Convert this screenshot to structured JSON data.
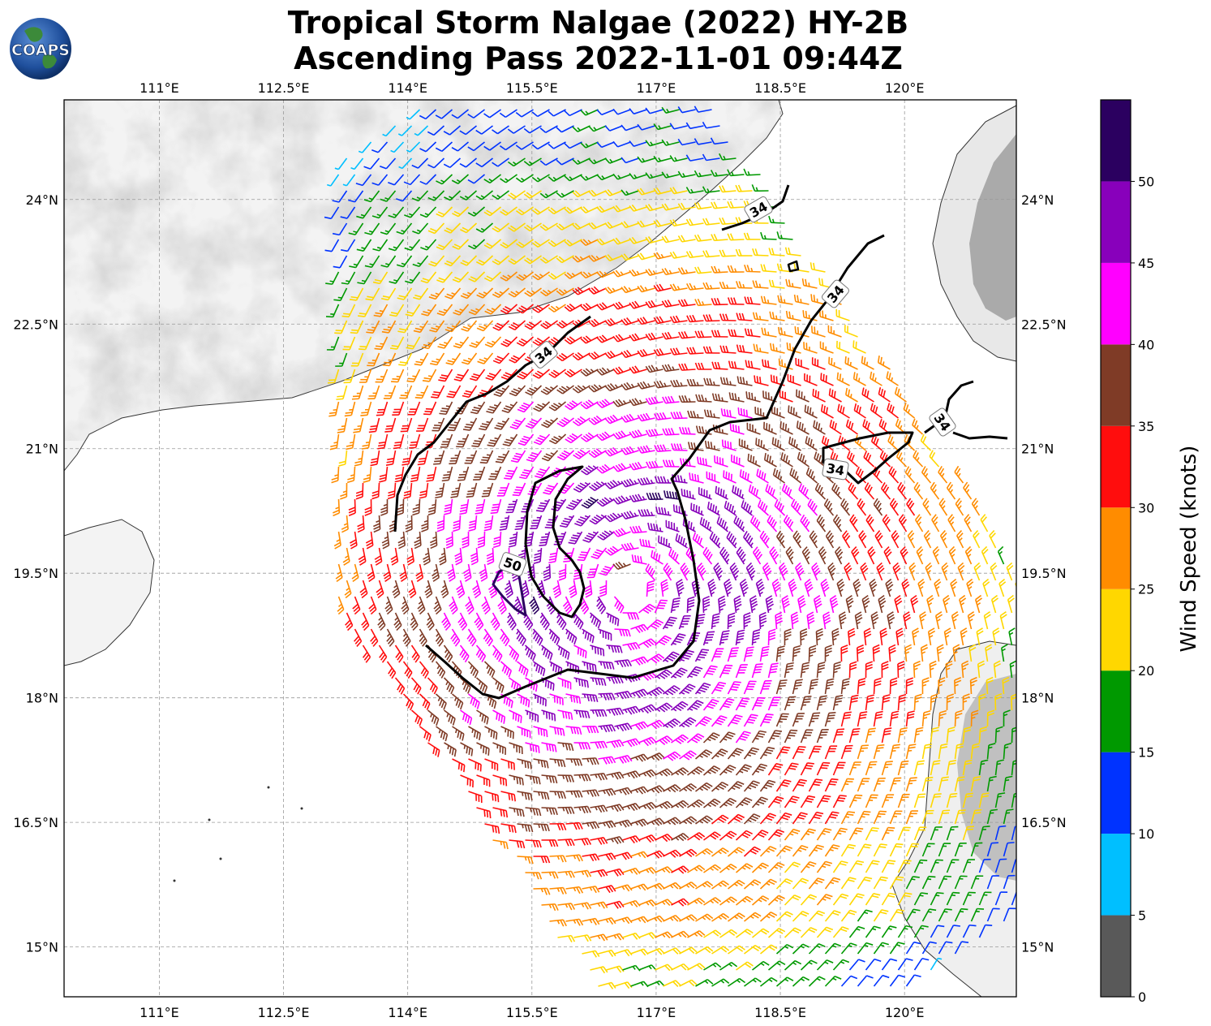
{
  "title": {
    "line1": "Tropical Storm Nalgae (2022) HY-2B",
    "line2": "Ascending Pass 2022-11-01 09:44Z"
  },
  "logo": {
    "text": "COAPS"
  },
  "map": {
    "lon_ticks": [
      "111°E",
      "112.5°E",
      "114°E",
      "115.5°E",
      "117°E",
      "118.5°E",
      "120°E"
    ],
    "lat_ticks": [
      "24°N",
      "22.5°N",
      "21°N",
      "19.5°N",
      "18°N",
      "16.5°N",
      "15°N"
    ],
    "lon_range": [
      109.85,
      121.35
    ],
    "lat_range": [
      14.4,
      25.2
    ],
    "contour_labels": [
      "34",
      "34",
      "34",
      "34",
      "34",
      "50"
    ],
    "storm_center": [
      116.7,
      19.3
    ]
  },
  "colorbar": {
    "label": "Wind Speed (knots)",
    "ticks": [
      "0",
      "5",
      "10",
      "15",
      "20",
      "25",
      "30",
      "35",
      "40",
      "45",
      "50"
    ],
    "bins": [
      {
        "min": 0,
        "max": 5,
        "color": "#595959"
      },
      {
        "min": 5,
        "max": 10,
        "color": "#00bfff"
      },
      {
        "min": 10,
        "max": 15,
        "color": "#0033ff"
      },
      {
        "min": 15,
        "max": 20,
        "color": "#009900"
      },
      {
        "min": 20,
        "max": 25,
        "color": "#ffd700"
      },
      {
        "min": 25,
        "max": 30,
        "color": "#ff8c00"
      },
      {
        "min": 30,
        "max": 35,
        "color": "#ff0d0d"
      },
      {
        "min": 35,
        "max": 40,
        "color": "#7f3b26"
      },
      {
        "min": 40,
        "max": 45,
        "color": "#ff00ff"
      },
      {
        "min": 45,
        "max": 50,
        "color": "#8800bb"
      },
      {
        "min": 50,
        "max": 55,
        "color": "#2b0060"
      }
    ]
  }
}
